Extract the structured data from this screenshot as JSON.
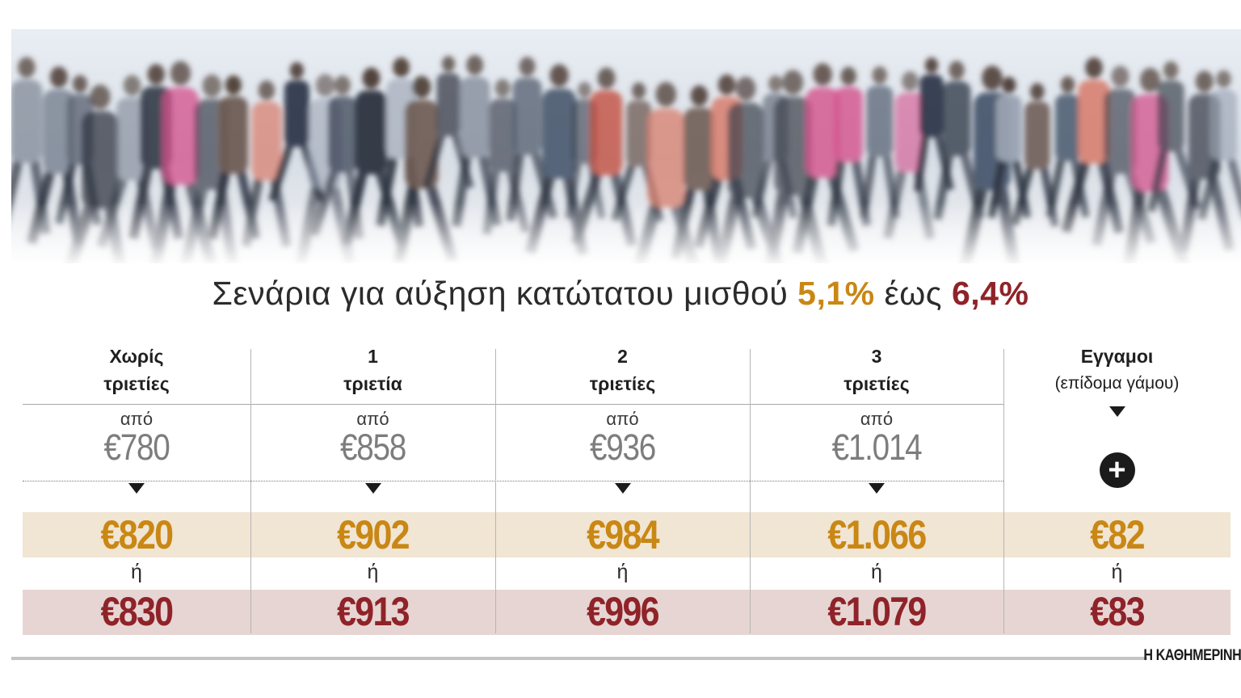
{
  "headline": {
    "prefix": "Σενάρια για αύξηση κατώτατου μισθού",
    "low_pct": "5,1%",
    "connector": "έως",
    "high_pct": "6,4%"
  },
  "colors": {
    "low": "#c98714",
    "high": "#8f2329",
    "base": "#7d7d7d"
  },
  "table": {
    "from_label": "από",
    "or_label": "ή",
    "plus_icon": "plus-circle-icon",
    "columns": [
      {
        "line1": "Χωρίς",
        "line2": "τριετίες",
        "from": "€780",
        "low": "€820",
        "high": "€830"
      },
      {
        "line1": "1",
        "line2": "τριετία",
        "from": "€858",
        "low": "€902",
        "high": "€913"
      },
      {
        "line1": "2",
        "line2": "τριετίες",
        "from": "€936",
        "low": "€984",
        "high": "€996"
      },
      {
        "line1": "3",
        "line2": "τριετίες",
        "from": "€1.014",
        "low": "€1.066",
        "high": "€1.079"
      },
      {
        "line1": "Εγγαμοι",
        "line2": "(επίδομα γάμου)",
        "low": "€82",
        "high": "€83"
      }
    ]
  },
  "chart_data": {
    "type": "table",
    "title": "Σενάρια για αύξηση κατώτατου μισθού 5,1% έως 6,4%",
    "categories": [
      "Χωρίς τριετίες",
      "1 τριετία",
      "2 τριετίες",
      "3 τριετίες",
      "Εγγαμοι (επίδομα γάμου)"
    ],
    "series": [
      {
        "name": "από",
        "values": [
          780,
          858,
          936,
          1014,
          null
        ]
      },
      {
        "name": "5,1%",
        "values": [
          820,
          902,
          984,
          1066,
          82
        ]
      },
      {
        "name": "6,4%",
        "values": [
          830,
          913,
          996,
          1079,
          83
        ]
      }
    ]
  },
  "footer": {
    "brand": "Η ΚΑΘΗΜΕΡΙΝΗ"
  }
}
